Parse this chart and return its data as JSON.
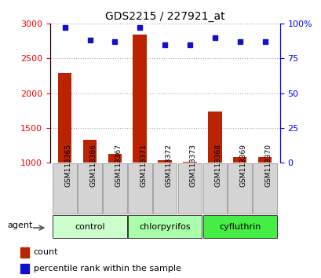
{
  "title": "GDS2215 / 227921_at",
  "samples": [
    "GSM113365",
    "GSM113366",
    "GSM113367",
    "GSM113371",
    "GSM113372",
    "GSM113373",
    "GSM113368",
    "GSM113369",
    "GSM113370"
  ],
  "counts": [
    2290,
    1330,
    1130,
    2840,
    1040,
    1010,
    1740,
    1080,
    1080
  ],
  "percentiles": [
    97,
    88,
    87,
    97,
    85,
    85,
    90,
    87,
    87
  ],
  "groups": [
    {
      "label": "control",
      "indices": [
        0,
        1,
        2
      ],
      "color": "#ccffcc"
    },
    {
      "label": "chlorpyrifos",
      "indices": [
        3,
        4,
        5
      ],
      "color": "#aaffaa"
    },
    {
      "label": "cyfluthrin",
      "indices": [
        6,
        7,
        8
      ],
      "color": "#44ee44"
    }
  ],
  "ylim_left": [
    1000,
    3000
  ],
  "ylim_right": [
    0,
    100
  ],
  "yticks_left": [
    1000,
    1500,
    2000,
    2500,
    3000
  ],
  "yticks_right": [
    0,
    25,
    50,
    75,
    100
  ],
  "bar_color": "#bb2200",
  "dot_color": "#1111cc",
  "bar_width": 0.55,
  "grid_color": "#aaaaaa",
  "plot_bg": "#ffffff",
  "legend_count_label": "count",
  "legend_pct_label": "percentile rank within the sample",
  "agent_label": "agent"
}
